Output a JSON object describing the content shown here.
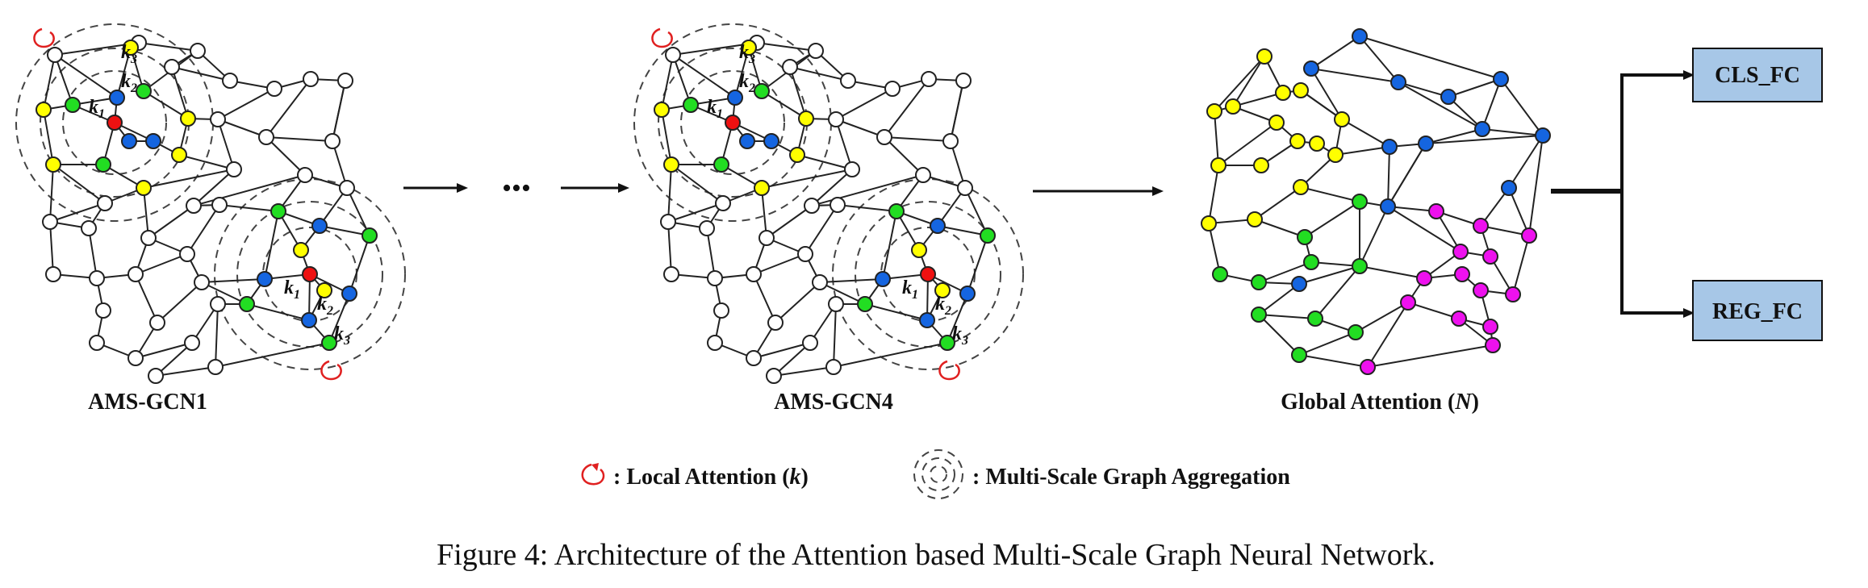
{
  "colors": {
    "white": "#ffffff",
    "yellow": "#ffff00",
    "green": "#22dd22",
    "blue": "#1565e0",
    "red": "#ee1111",
    "magenta": "#ee11ee",
    "box_fill": "#a7c7e7",
    "swirl": "#e02020"
  },
  "panels": {
    "gcn1_label": "AMS-GCN1",
    "gcn4_label": "AMS-GCN4",
    "global_label_prefix": "Global Attention (",
    "global_label_var": "N",
    "global_label_suffix": ")"
  },
  "k_labels": {
    "k": "k",
    "sub1": "1",
    "sub2": "2",
    "sub3": "3"
  },
  "ellipsis": "•••",
  "outputs": {
    "cls": "CLS_FC",
    "reg": "REG_FC"
  },
  "legend": {
    "local_prefix": ": Local Attention (",
    "local_var": "k",
    "local_suffix": ")",
    "multi": ": Multi-Scale Graph Aggregation"
  },
  "caption": "Figure 4: Architecture of the Attention based Multi-Scale Graph Neural Network."
}
